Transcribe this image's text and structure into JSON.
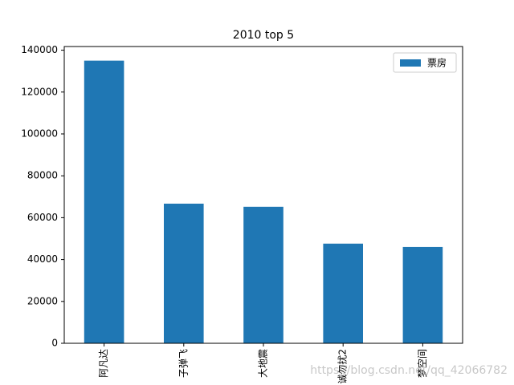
{
  "chart_data": {
    "type": "bar",
    "title": "2010 top 5",
    "categories": [
      "阿凡达",
      "子弹飞",
      "大地震",
      "诚勿扰2",
      "梦空间"
    ],
    "series": [
      {
        "name": "票房",
        "color": "#1f77b4",
        "values": [
          135000,
          66700,
          65200,
          47600,
          46000
        ]
      }
    ],
    "ylim": [
      0,
      141750
    ],
    "yticks": [
      0,
      20000,
      40000,
      60000,
      80000,
      100000,
      120000,
      140000
    ],
    "legend": "upper-right",
    "watermark": "https://blog.csdn.net/qq_42066782"
  }
}
